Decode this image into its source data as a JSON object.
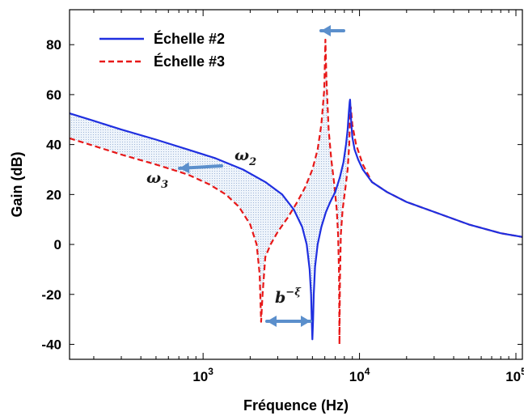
{
  "chart_data": {
    "type": "line",
    "xlabel": "Fréquence (Hz)",
    "ylabel": "Gain (dB)",
    "x_scale": "log",
    "xlim": [
      140,
      110000
    ],
    "ylim": [
      -46,
      94
    ],
    "x_ticks": [
      {
        "value": 1000,
        "base": "10",
        "exp": "3"
      },
      {
        "value": 10000,
        "base": "10",
        "exp": "4"
      },
      {
        "value": 100000,
        "base": "10",
        "exp": "5"
      }
    ],
    "y_ticks": [
      -40,
      -20,
      0,
      20,
      40,
      60,
      80
    ],
    "y_tick_labels": [
      "-40",
      "-20",
      "0",
      "20",
      "40",
      "60",
      "80"
    ],
    "grid": false,
    "legend_position": "top-left",
    "series": [
      {
        "name": "Échelle #2",
        "color": "#1f2fe0",
        "style": "solid",
        "x": [
          140,
          200,
          300,
          500,
          800,
          1200,
          1800,
          2500,
          3200,
          3800,
          4300,
          4600,
          4800,
          4900,
          4950,
          5000,
          5050,
          5100,
          5200,
          5400,
          5700,
          6100,
          6500,
          7000,
          7500,
          7900,
          8200,
          8400,
          8550,
          8650,
          8700,
          8750,
          8850,
          9000,
          9300,
          9800,
          10500,
          12000,
          15000,
          20000,
          30000,
          50000,
          80000,
          110000
        ],
        "y": [
          52.5,
          49.5,
          46,
          42,
          38,
          34.5,
          30,
          25,
          20,
          14,
          7,
          0,
          -10,
          -20,
          -30,
          -38,
          -30,
          -20,
          -9,
          0,
          7,
          13,
          17,
          21,
          27,
          33,
          40,
          46,
          53,
          57,
          58,
          55,
          49,
          43,
          38,
          34,
          30,
          25,
          21,
          17,
          13,
          8,
          4.5,
          3
        ]
      },
      {
        "name": "Échelle #3",
        "color": "#e81818",
        "style": "dashed",
        "x": [
          140,
          200,
          300,
          500,
          800,
          1100,
          1400,
          1700,
          2000,
          2200,
          2300,
          2350,
          2400,
          2500,
          2700,
          3000,
          3500,
          4000,
          4500,
          5000,
          5400,
          5700,
          5950,
          6050,
          6150,
          6350,
          6600,
          6900,
          7150,
          7300,
          7400,
          7450,
          7500,
          7600,
          7800,
          8100,
          8400,
          8600,
          8700,
          8800,
          9000,
          9500,
          10500,
          12000,
          15000,
          20000,
          30000,
          50000,
          80000,
          110000
        ],
        "y": [
          42.5,
          39.5,
          36,
          32,
          28,
          24,
          20,
          15,
          8,
          0,
          -12,
          -31,
          -20,
          -5,
          0,
          5,
          11,
          17,
          23,
          30,
          38,
          48,
          62,
          82,
          66,
          46,
          34,
          24,
          14,
          4,
          -12,
          -40,
          -14,
          4,
          14,
          22,
          30,
          40,
          52,
          55,
          48,
          40,
          32,
          25,
          21,
          17,
          13,
          8,
          4.5,
          3
        ]
      }
    ],
    "annotations": [
      {
        "text": "ω",
        "sub": "2",
        "x": 2000,
        "y": 34
      },
      {
        "text": "ω",
        "sub": "3",
        "x": 320,
        "y": 24
      },
      {
        "text": "b",
        "sup": "−ξ",
        "x": 2500,
        "y": -20
      }
    ]
  }
}
